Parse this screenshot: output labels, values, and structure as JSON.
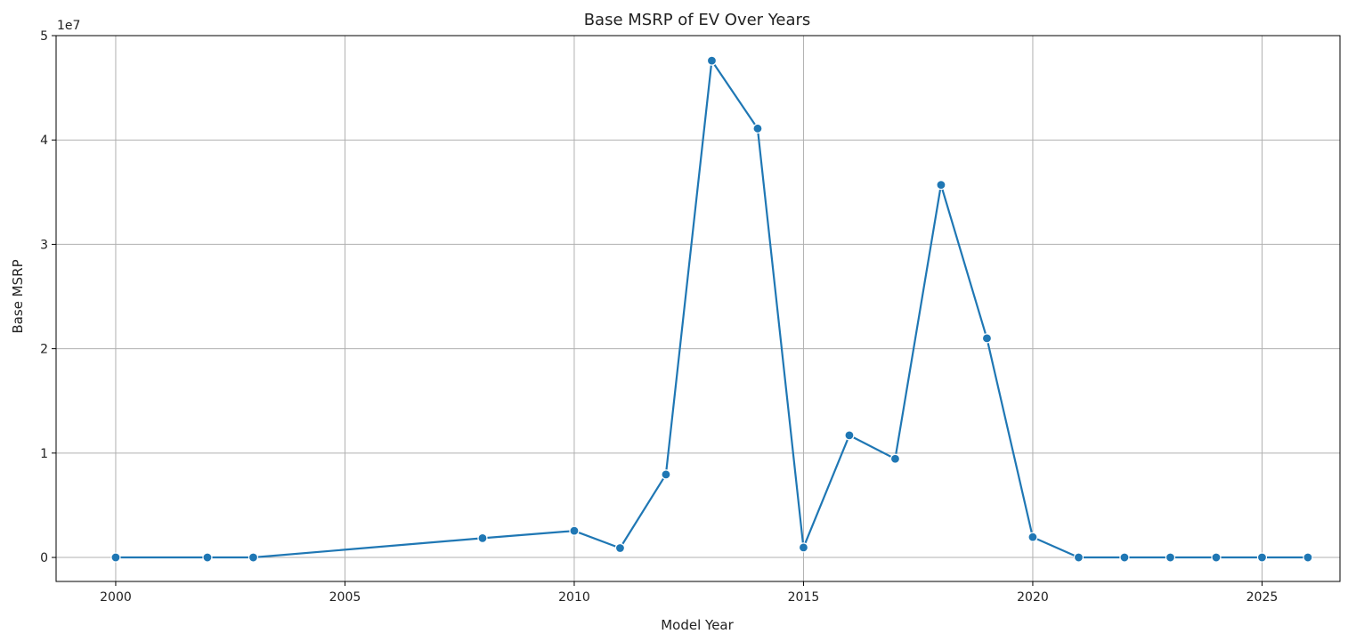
{
  "chart_data": {
    "type": "line",
    "title": "Base MSRP of EV Over Years",
    "xlabel": "Model Year",
    "ylabel": "Base MSRP",
    "y_offset_label": "1e7",
    "y_scale": 10000000,
    "xlim": [
      1998.7,
      2026.7
    ],
    "ylim": [
      -2300000,
      50000000
    ],
    "x_ticks": [
      2000,
      2005,
      2010,
      2015,
      2020,
      2025
    ],
    "x_tick_labels": [
      "2000",
      "2005",
      "2010",
      "2015",
      "2020",
      "2025"
    ],
    "y_ticks": [
      0,
      10000000,
      20000000,
      30000000,
      40000000,
      50000000
    ],
    "y_tick_labels": [
      "0",
      "1",
      "2",
      "3",
      "4",
      "5"
    ],
    "grid": true,
    "series": [
      {
        "color": "#1f77b4",
        "x": [
          2000,
          2002,
          2003,
          2008,
          2010,
          2011,
          2012,
          2013,
          2014,
          2015,
          2016,
          2017,
          2018,
          2019,
          2020,
          2021,
          2022,
          2023,
          2024,
          2025,
          2026
        ],
        "y": [
          0,
          0,
          0,
          1850000,
          2550000,
          900000,
          7950000,
          47600000,
          41100000,
          950000,
          11700000,
          9450000,
          35700000,
          21000000,
          1950000,
          0,
          0,
          0,
          0,
          0,
          0
        ]
      }
    ]
  }
}
